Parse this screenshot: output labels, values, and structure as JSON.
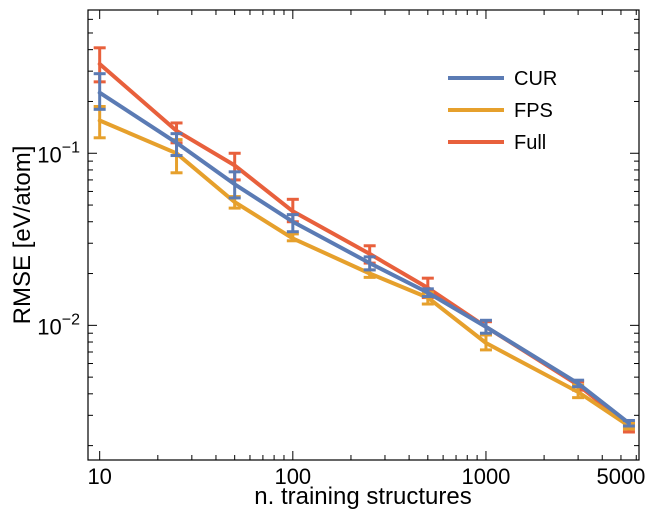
{
  "chart_data": {
    "type": "line",
    "xlabel": "n. training structures",
    "ylabel": "RMSE [eV/atom]",
    "xscale": "log",
    "yscale": "log",
    "xlim": [
      8.7,
      6200
    ],
    "ylim": [
      0.00165,
      0.68
    ],
    "grid": false,
    "legend_position": "top-right",
    "x_tick_labels": [
      {
        "value": 10,
        "label": "10"
      },
      {
        "value": 100,
        "label": "100"
      },
      {
        "value": 1000,
        "label": "1000"
      },
      {
        "value": 5000,
        "label": "5000"
      }
    ],
    "y_tick_labels": [
      {
        "value": 0.1,
        "mantissa": "10",
        "exp": "−1"
      },
      {
        "value": 0.01,
        "mantissa": "10",
        "exp": "−2"
      }
    ],
    "x": [
      10,
      25,
      50,
      100,
      250,
      500,
      1000,
      3000,
      5500
    ],
    "series": [
      {
        "name": "Full",
        "color": "#e8603c",
        "values": [
          0.33,
          0.135,
          0.085,
          0.046,
          0.026,
          0.0165,
          0.0098,
          0.0045,
          0.0026
        ],
        "lower": [
          0.26,
          0.115,
          0.07,
          0.04,
          0.023,
          0.0145,
          0.0088,
          0.0042,
          0.0024
        ],
        "upper": [
          0.41,
          0.15,
          0.1,
          0.054,
          0.029,
          0.0188,
          0.0105,
          0.0047,
          0.0027
        ]
      },
      {
        "name": "FPS",
        "color": "#e6a02c",
        "values": [
          0.155,
          0.1,
          0.052,
          0.032,
          0.02,
          0.0145,
          0.0079,
          0.0041,
          0.0026
        ],
        "lower": [
          0.123,
          0.077,
          0.048,
          0.031,
          0.019,
          0.0133,
          0.0072,
          0.0038,
          0.0025
        ],
        "upper": [
          0.187,
          0.12,
          0.056,
          0.034,
          0.021,
          0.0155,
          0.0088,
          0.0045,
          0.0027
        ]
      },
      {
        "name": "CUR",
        "color": "#5b7bb4",
        "values": [
          0.225,
          0.115,
          0.066,
          0.04,
          0.023,
          0.0155,
          0.0098,
          0.0046,
          0.0027
        ],
        "lower": [
          0.18,
          0.097,
          0.055,
          0.035,
          0.021,
          0.0147,
          0.009,
          0.0044,
          0.0026
        ],
        "upper": [
          0.29,
          0.13,
          0.078,
          0.044,
          0.025,
          0.0163,
          0.0107,
          0.0048,
          0.0028
        ]
      }
    ],
    "legend": [
      {
        "name": "CUR",
        "color": "#5b7bb4"
      },
      {
        "name": "FPS",
        "color": "#e6a02c"
      },
      {
        "name": "Full",
        "color": "#e8603c"
      }
    ]
  }
}
